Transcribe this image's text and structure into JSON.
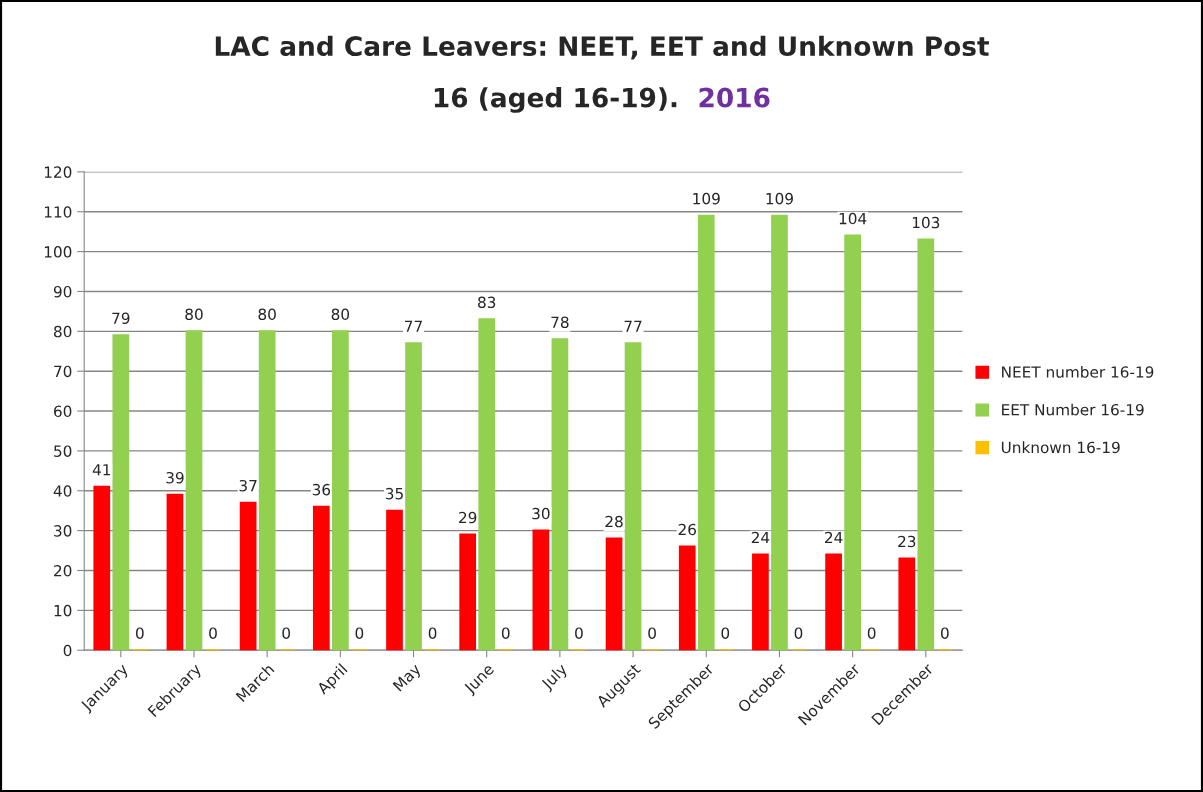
{
  "chart_data": {
    "type": "bar",
    "title": "LAC and Care Leavers: NEET, EET and Unknown Post\n16 (aged 16-19).",
    "subtitle": "2016",
    "categories": [
      "January",
      "February",
      "March",
      "April",
      "May",
      "June",
      "July",
      "August",
      "September",
      "October",
      "November",
      "December"
    ],
    "series": [
      {
        "name": "NEET number 16-19",
        "color": "#ff0000",
        "values": [
          41,
          39,
          37,
          36,
          35,
          29,
          30,
          28,
          26,
          24,
          24,
          23
        ]
      },
      {
        "name": "EET Number 16-19",
        "color": "#92d050",
        "values": [
          79,
          80,
          80,
          80,
          77,
          83,
          78,
          77,
          109,
          109,
          104,
          103
        ]
      },
      {
        "name": "Unknown 16-19",
        "color": "#ffc000",
        "values": [
          0,
          0,
          0,
          0,
          0,
          0,
          0,
          0,
          0,
          0,
          0,
          0
        ]
      }
    ],
    "ylim": [
      0,
      120
    ],
    "yticks": [
      0,
      10,
      20,
      30,
      40,
      50,
      60,
      70,
      80,
      90,
      100,
      110,
      120
    ],
    "grid": "y",
    "legend": "right",
    "data_labels": true
  }
}
